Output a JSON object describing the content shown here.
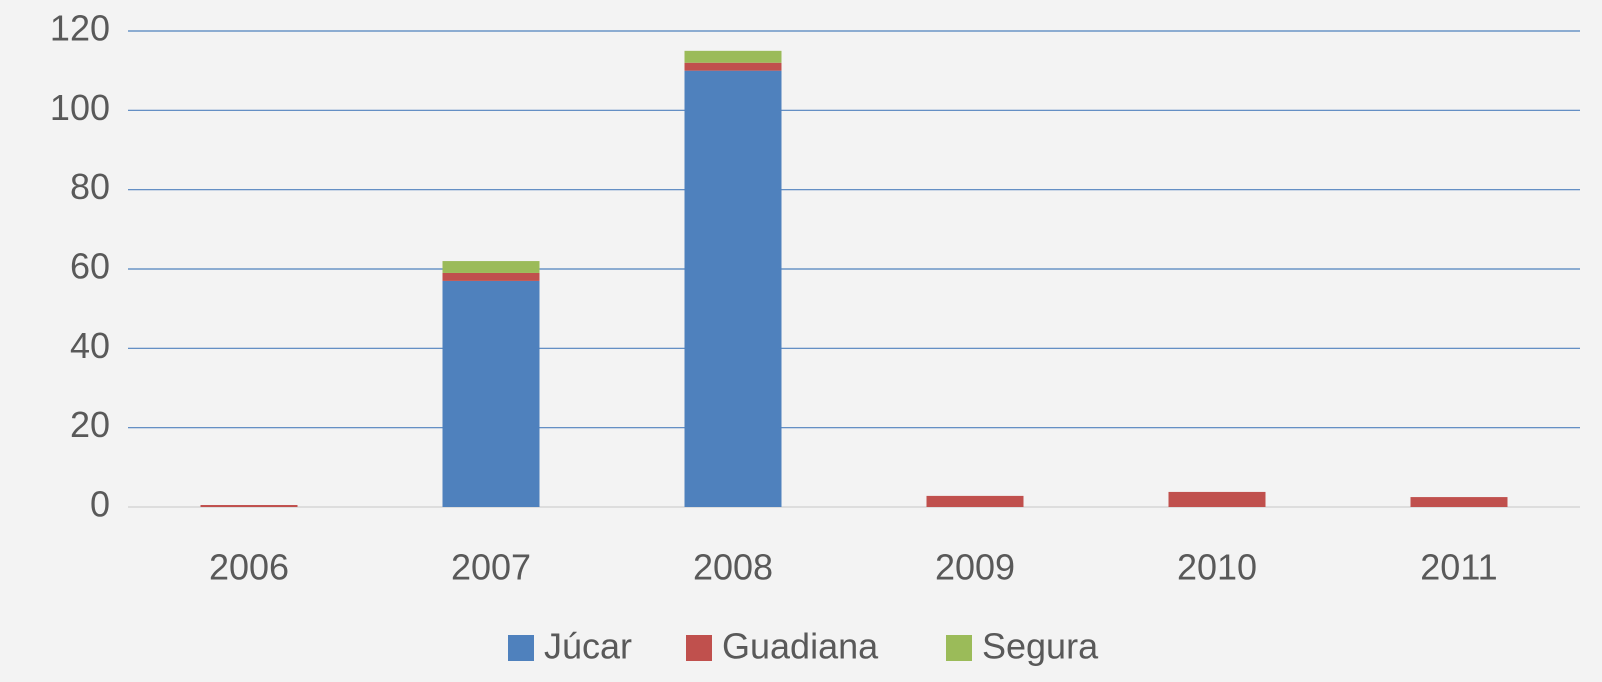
{
  "chart_data": {
    "type": "stacked_bar",
    "categories": [
      "2006",
      "2007",
      "2008",
      "2009",
      "2010",
      "2011"
    ],
    "series": [
      {
        "name": "Júcar",
        "color": "#4f81bd",
        "values": [
          0,
          57,
          110,
          0,
          0,
          0
        ]
      },
      {
        "name": "Guadiana",
        "color": "#c0504d",
        "values": [
          0.5,
          2,
          2,
          2.8,
          3.8,
          2.5
        ]
      },
      {
        "name": "Segura",
        "color": "#9bbb59",
        "values": [
          0,
          3,
          3,
          0,
          0,
          0
        ]
      }
    ],
    "ylim": [
      0,
      120
    ],
    "yticks": [
      0,
      20,
      40,
      60,
      80,
      100,
      120
    ],
    "grid": true,
    "legend": "bottom"
  }
}
